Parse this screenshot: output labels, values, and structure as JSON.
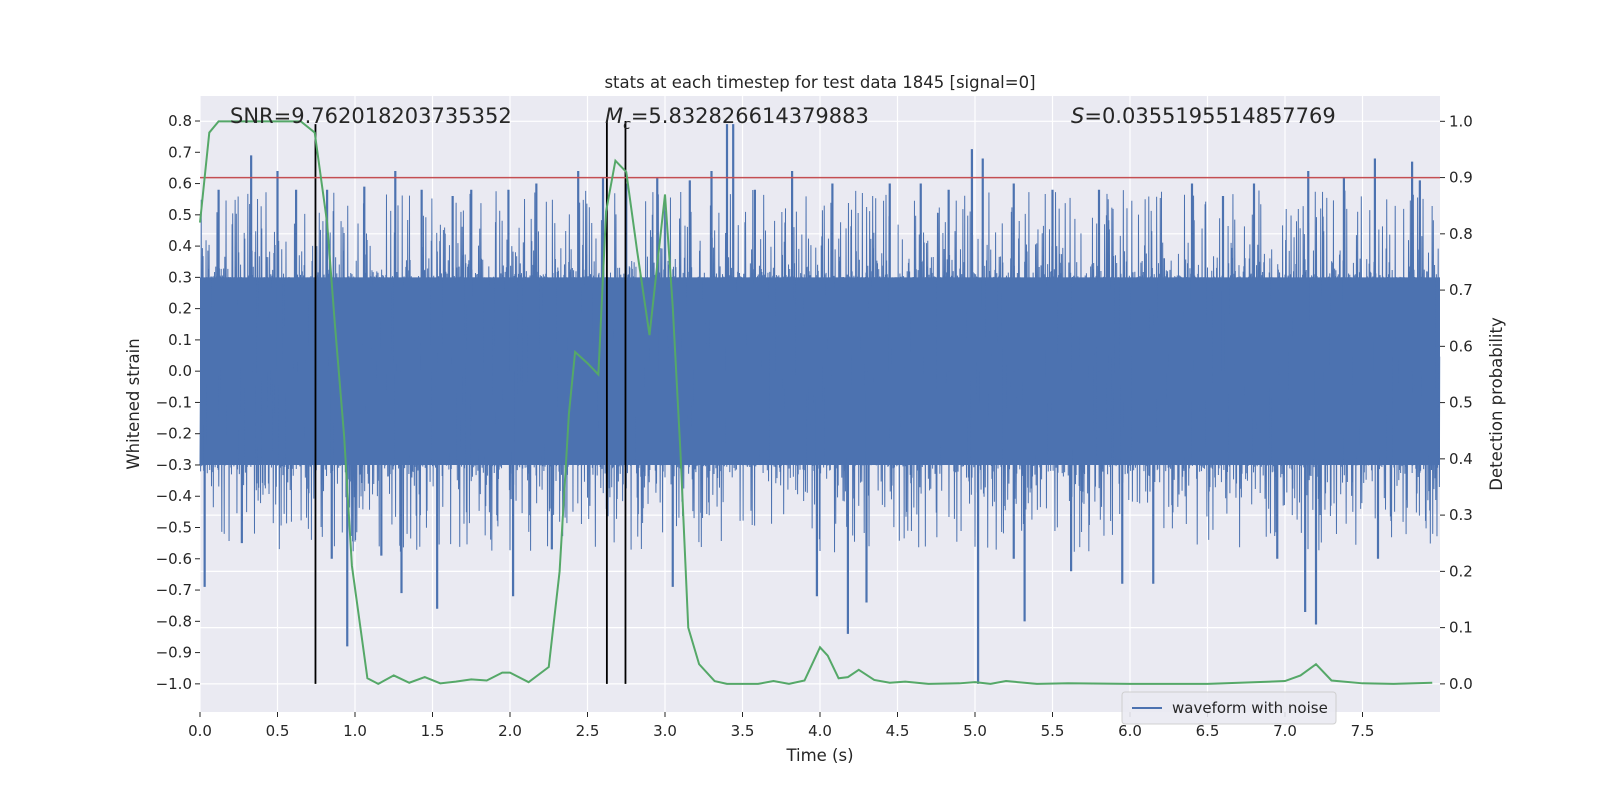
{
  "chart_data": {
    "type": "line",
    "title": "stats at each timestep for test data 1845 [signal=0]",
    "xlabel": "Time (s)",
    "ylabel_left": "Whitened strain",
    "ylabel_right": "Detection probability",
    "xlim": [
      0.0,
      8.0
    ],
    "ylim_left": [
      -1.09,
      0.88
    ],
    "ylim_right": [
      -0.05,
      1.045
    ],
    "x_ticks": [
      0.0,
      0.5,
      1.0,
      1.5,
      2.0,
      2.5,
      3.0,
      3.5,
      4.0,
      4.5,
      5.0,
      5.5,
      6.0,
      6.5,
      7.0,
      7.5
    ],
    "x_tick_labels": [
      "0.0",
      "0.5",
      "1.0",
      "1.5",
      "2.0",
      "2.5",
      "3.0",
      "3.5",
      "4.0",
      "4.5",
      "5.0",
      "5.5",
      "6.0",
      "6.5",
      "7.0",
      "7.5"
    ],
    "y_left_ticks": [
      0.8,
      0.7,
      0.6,
      0.5,
      0.4,
      0.3,
      0.2,
      0.1,
      0.0,
      -0.1,
      -0.2,
      -0.3,
      -0.4,
      -0.5,
      -0.6,
      -0.7,
      -0.8,
      -0.9,
      -1.0
    ],
    "y_left_tick_labels": [
      "0.8",
      "0.7",
      "0.6",
      "0.5",
      "0.4",
      "0.3",
      "0.2",
      "0.1",
      "0.0",
      "−0.1",
      "−0.2",
      "−0.3",
      "−0.4",
      "−0.5",
      "−0.6",
      "−0.7",
      "−0.8",
      "−0.9",
      "−1.0"
    ],
    "y_right_ticks": [
      1.0,
      0.9,
      0.8,
      0.7,
      0.6,
      0.5,
      0.4,
      0.3,
      0.2,
      0.1,
      0.0
    ],
    "y_right_tick_labels": [
      "1.0",
      "0.9",
      "0.8",
      "0.7",
      "0.6",
      "0.5",
      "0.4",
      "0.3",
      "0.2",
      "0.1",
      "0.0"
    ],
    "annotations": {
      "snr": "SNR=9.762018203735352",
      "mc_symbol": "M",
      "mc_subscript": "c",
      "mc_value": "=5.832826614379883",
      "s_symbol": "S",
      "s_value": "=0.0355195514857769"
    },
    "threshold_right": 0.9,
    "threshold_color": "#c44e52",
    "vertical_markers": [
      {
        "x": 0.745,
        "y0": -1.0,
        "y1": 0.79
      },
      {
        "x": 2.625,
        "y0": -1.0,
        "y1": 0.8
      },
      {
        "x": 2.745,
        "y0": -1.0,
        "y1": 0.8
      }
    ],
    "waveform": {
      "name": "waveform with noise",
      "color": "#4c72b0",
      "sample_rate": 512,
      "core_envelope": 0.3,
      "peaks": [
        [
          0.03,
          -0.69
        ],
        [
          0.12,
          0.58
        ],
        [
          0.27,
          -0.55
        ],
        [
          0.33,
          0.69
        ],
        [
          0.5,
          0.64
        ],
        [
          0.62,
          0.58
        ],
        [
          0.82,
          0.58
        ],
        [
          0.85,
          -0.6
        ],
        [
          0.95,
          -0.88
        ],
        [
          1.06,
          0.59
        ],
        [
          1.17,
          -0.59
        ],
        [
          1.26,
          0.64
        ],
        [
          1.3,
          -0.71
        ],
        [
          1.43,
          0.58
        ],
        [
          1.53,
          -0.76
        ],
        [
          1.63,
          0.56
        ],
        [
          1.75,
          0.58
        ],
        [
          1.99,
          0.58
        ],
        [
          2.02,
          -0.72
        ],
        [
          2.17,
          0.6
        ],
        [
          2.27,
          -0.57
        ],
        [
          2.44,
          0.64
        ],
        [
          2.6,
          0.62
        ],
        [
          2.75,
          0.6
        ],
        [
          2.95,
          0.62
        ],
        [
          3.05,
          -0.69
        ],
        [
          3.16,
          0.61
        ],
        [
          3.3,
          0.64
        ],
        [
          3.4,
          0.79
        ],
        [
          3.44,
          0.79
        ],
        [
          3.58,
          0.58
        ],
        [
          3.82,
          0.64
        ],
        [
          3.98,
          -0.72
        ],
        [
          4.08,
          0.6
        ],
        [
          4.18,
          -0.84
        ],
        [
          4.3,
          -0.74
        ],
        [
          4.45,
          0.6
        ],
        [
          4.65,
          0.6
        ],
        [
          4.83,
          0.58
        ],
        [
          4.98,
          0.71
        ],
        [
          5.02,
          -1.0
        ],
        [
          5.05,
          0.68
        ],
        [
          5.25,
          -0.6
        ],
        [
          5.25,
          0.6
        ],
        [
          5.32,
          -0.8
        ],
        [
          5.5,
          0.58
        ],
        [
          5.62,
          -0.64
        ],
        [
          5.8,
          0.58
        ],
        [
          5.95,
          -0.68
        ],
        [
          6.15,
          -0.68
        ],
        [
          6.4,
          0.6
        ],
        [
          6.6,
          0.56
        ],
        [
          6.8,
          0.6
        ],
        [
          6.95,
          -0.6
        ],
        [
          7.13,
          -0.77
        ],
        [
          7.15,
          0.64
        ],
        [
          7.2,
          -0.81
        ],
        [
          7.38,
          0.62
        ],
        [
          7.58,
          0.68
        ],
        [
          7.6,
          -0.6
        ],
        [
          7.82,
          0.67
        ],
        [
          7.87,
          0.61
        ]
      ]
    },
    "probability": {
      "color": "#55a868",
      "x": [
        0.0,
        0.06,
        0.12,
        0.25,
        0.45,
        0.65,
        0.74,
        0.82,
        0.87,
        0.93,
        0.98,
        1.08,
        1.15,
        1.25,
        1.35,
        1.45,
        1.55,
        1.65,
        1.75,
        1.85,
        1.95,
        2.0,
        2.12,
        2.25,
        2.32,
        2.38,
        2.42,
        2.5,
        2.57,
        2.62,
        2.68,
        2.75,
        2.82,
        2.9,
        3.0,
        3.05,
        3.1,
        3.15,
        3.22,
        3.32,
        3.4,
        3.5,
        3.6,
        3.7,
        3.8,
        3.9,
        4.0,
        4.05,
        4.12,
        4.18,
        4.25,
        4.35,
        4.45,
        4.55,
        4.7,
        4.9,
        5.0,
        5.1,
        5.2,
        5.4,
        5.6,
        6.0,
        6.5,
        7.0,
        7.1,
        7.2,
        7.3,
        7.5,
        7.7,
        7.95
      ],
      "y": [
        0.82,
        0.98,
        1.0,
        1.0,
        1.0,
        1.0,
        0.98,
        0.82,
        0.64,
        0.44,
        0.21,
        0.01,
        0.0,
        0.015,
        0.002,
        0.012,
        0.001,
        0.004,
        0.008,
        0.006,
        0.02,
        0.02,
        0.003,
        0.03,
        0.2,
        0.48,
        0.59,
        0.57,
        0.55,
        0.84,
        0.93,
        0.91,
        0.77,
        0.62,
        0.87,
        0.67,
        0.41,
        0.1,
        0.035,
        0.005,
        0.0,
        0.0,
        0.0,
        0.005,
        0.0,
        0.006,
        0.065,
        0.05,
        0.01,
        0.012,
        0.025,
        0.007,
        0.002,
        0.004,
        0.0,
        0.001,
        0.003,
        0.0,
        0.005,
        0.0,
        0.001,
        0.0,
        0.0,
        0.005,
        0.015,
        0.035,
        0.006,
        0.001,
        0.0,
        0.002
      ]
    },
    "legend": {
      "label": "waveform with noise",
      "placement": "lower-right"
    }
  }
}
